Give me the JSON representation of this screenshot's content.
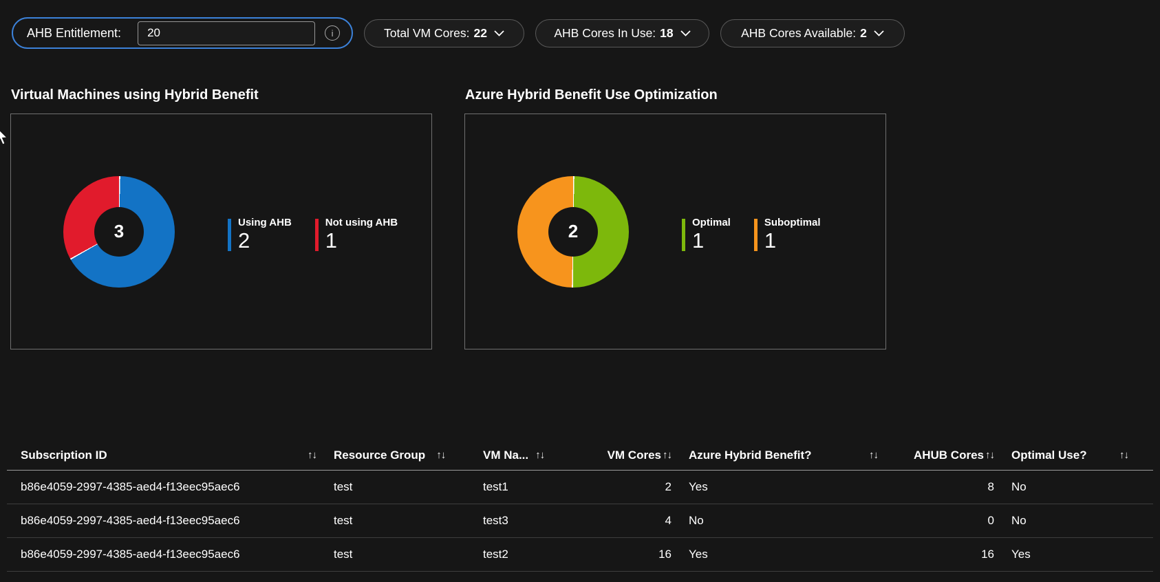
{
  "colors": {
    "accent_blue_border": "#3c82da",
    "page_background": "#161616",
    "panel_border": "#707070"
  },
  "toolbar": {
    "entitlement": {
      "label": "AHB Entitlement:",
      "value": "20",
      "info_icon": "info-circle"
    },
    "dropdowns": [
      {
        "label": "Total VM Cores:",
        "value": "22"
      },
      {
        "label": "AHB Cores In Use:",
        "value": "18"
      },
      {
        "label": "AHB Cores Available:",
        "value": "2"
      }
    ]
  },
  "chart_data": [
    {
      "type": "pie",
      "donut": true,
      "title": "Virtual Machines using Hybrid Benefit",
      "total_label": "3",
      "legend_position": "right",
      "series": [
        {
          "name": "Using AHB",
          "value": 2,
          "color": "#1373c5"
        },
        {
          "name": "Not using AHB",
          "value": 1,
          "color": "#e11b2c"
        }
      ]
    },
    {
      "type": "pie",
      "donut": true,
      "title": "Azure Hybrid Benefit Use Optimization",
      "total_label": "2",
      "legend_position": "right",
      "series": [
        {
          "name": "Optimal",
          "value": 1,
          "color": "#7db80c"
        },
        {
          "name": "Suboptimal",
          "value": 1,
          "color": "#f7941d"
        }
      ]
    }
  ],
  "table": {
    "sort_icon": "↑↓",
    "columns": [
      {
        "label": "Subscription ID",
        "sortable": true
      },
      {
        "label": "Resource Group",
        "sortable": true
      },
      {
        "label": "VM Na...",
        "sortable": true
      },
      {
        "label": "VM Cores",
        "sortable": true
      },
      {
        "label": "Azure Hybrid Benefit?",
        "sortable": true
      },
      {
        "label": "AHUB Cores",
        "sortable": true
      },
      {
        "label": "Optimal Use?",
        "sortable": true
      }
    ],
    "rows": [
      [
        "b86e4059-2997-4385-aed4-f13eec95aec6",
        "test",
        "test1",
        "2",
        "Yes",
        "8",
        "No"
      ],
      [
        "b86e4059-2997-4385-aed4-f13eec95aec6",
        "test",
        "test3",
        "4",
        "No",
        "0",
        "No"
      ],
      [
        "b86e4059-2997-4385-aed4-f13eec95aec6",
        "test",
        "test2",
        "16",
        "Yes",
        "16",
        "Yes"
      ]
    ]
  }
}
